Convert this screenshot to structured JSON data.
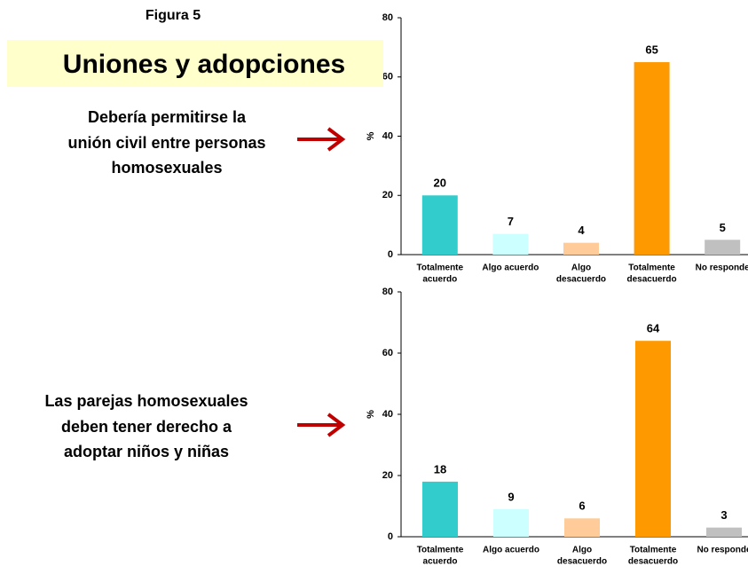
{
  "figure": "Figura 5",
  "title": "Uniones y adopciones",
  "captions": [
    [
      "Debería permitirse la",
      "unión civil entre personas",
      "homosexuales"
    ],
    [
      "Las parejas homosexuales",
      "deben tener derecho a",
      "adoptar niños y niñas"
    ]
  ],
  "chart_data": [
    {
      "type": "bar",
      "ylabel": "%",
      "categories": [
        [
          "Totalmente",
          "acuerdo"
        ],
        [
          "Algo acuerdo"
        ],
        [
          "Algo",
          "desacuerdo"
        ],
        [
          "Totalmente",
          "desacuerdo"
        ],
        [
          "No responde"
        ]
      ],
      "values": [
        20,
        7,
        4,
        65,
        5
      ],
      "colors": [
        "#33cccc",
        "#ccffff",
        "#ffcc99",
        "#ff9900",
        "#c0c0c0"
      ],
      "ylim": [
        0,
        80
      ],
      "yticks": [
        0,
        20,
        40,
        60,
        80
      ]
    },
    {
      "type": "bar",
      "ylabel": "%",
      "categories": [
        [
          "Totalmente",
          "acuerdo"
        ],
        [
          "Algo acuerdo"
        ],
        [
          "Algo",
          "desacuerdo"
        ],
        [
          "Totalmente",
          "desacuerdo"
        ],
        [
          "No responde"
        ]
      ],
      "values": [
        18,
        9,
        6,
        64,
        3
      ],
      "colors": [
        "#33cccc",
        "#ccffff",
        "#ffcc99",
        "#ff9900",
        "#c0c0c0"
      ],
      "ylim": [
        0,
        80
      ],
      "yticks": [
        0,
        20,
        40,
        60,
        80
      ]
    }
  ]
}
